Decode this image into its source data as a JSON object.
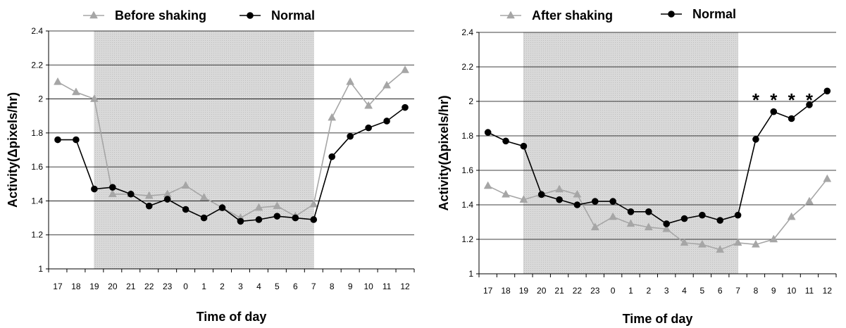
{
  "chart_data": [
    {
      "type": "line",
      "xlabel": "Time of day",
      "ylabel": "Activity(Δpixels/hr)",
      "categories": [
        "17",
        "18",
        "19",
        "20",
        "21",
        "22",
        "23",
        "0",
        "1",
        "2",
        "3",
        "4",
        "5",
        "6",
        "7",
        "8",
        "9",
        "10",
        "11",
        "12"
      ],
      "ylim": [
        1,
        2.4
      ],
      "yticks": [
        "1",
        "1.2",
        "1.4",
        "1.6",
        "1.8",
        "2",
        "2.2",
        "2.4"
      ],
      "grid": true,
      "legend": "top",
      "shaded_range": [
        "19",
        "7"
      ],
      "series": [
        {
          "name": "Before shaking",
          "marker": "triangle",
          "color": "#a6a6a6",
          "values": [
            2.1,
            2.04,
            2.0,
            1.44,
            1.44,
            1.43,
            1.44,
            1.49,
            1.42,
            1.36,
            1.3,
            1.36,
            1.37,
            1.31,
            1.38,
            1.89,
            2.1,
            1.96,
            2.08,
            2.17
          ]
        },
        {
          "name": "Normal",
          "marker": "circle",
          "color": "#000000",
          "values": [
            1.76,
            1.76,
            1.47,
            1.48,
            1.44,
            1.37,
            1.41,
            1.35,
            1.3,
            1.36,
            1.28,
            1.29,
            1.31,
            1.3,
            1.29,
            1.66,
            1.78,
            1.83,
            1.87,
            1.95
          ]
        }
      ],
      "annotations": []
    },
    {
      "type": "line",
      "xlabel": "Time of day",
      "ylabel": "Activity(Δpixels/hr)",
      "categories": [
        "17",
        "18",
        "19",
        "20",
        "21",
        "22",
        "23",
        "0",
        "1",
        "2",
        "3",
        "4",
        "5",
        "6",
        "7",
        "8",
        "9",
        "10",
        "11",
        "12"
      ],
      "ylim": [
        1,
        2.4
      ],
      "yticks": [
        "1",
        "1.2",
        "1.4",
        "1.6",
        "1.8",
        "2",
        "2.2",
        "2.4"
      ],
      "grid": true,
      "legend": "top",
      "shaded_range": [
        "19",
        "7"
      ],
      "series": [
        {
          "name": "After shaking",
          "marker": "triangle",
          "color": "#a6a6a6",
          "values": [
            1.51,
            1.46,
            1.43,
            1.46,
            1.49,
            1.46,
            1.27,
            1.33,
            1.29,
            1.27,
            1.26,
            1.18,
            1.17,
            1.14,
            1.18,
            1.17,
            1.2,
            1.33,
            1.42,
            1.55
          ]
        },
        {
          "name": "Normal",
          "marker": "circle",
          "color": "#000000",
          "values": [
            1.82,
            1.77,
            1.74,
            1.46,
            1.43,
            1.4,
            1.42,
            1.42,
            1.36,
            1.36,
            1.29,
            1.32,
            1.34,
            1.31,
            1.34,
            1.78,
            1.94,
            1.9,
            1.98,
            2.06
          ]
        }
      ],
      "annotations": [
        {
          "text": "*",
          "x": "8"
        },
        {
          "text": "*",
          "x": "9"
        },
        {
          "text": "*",
          "x": "10"
        },
        {
          "text": "*",
          "x": "11"
        }
      ]
    }
  ]
}
